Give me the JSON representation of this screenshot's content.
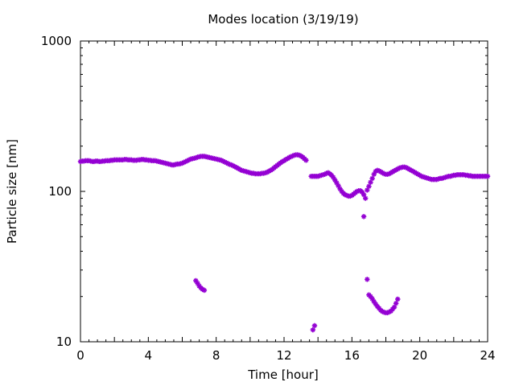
{
  "chart_data": {
    "type": "scatter",
    "title": "Modes location (3/19/19)",
    "xlabel": "Time [hour]",
    "ylabel": "Particle size [nm]",
    "xlim": [
      0,
      24
    ],
    "ylim": [
      10,
      1000
    ],
    "yscale": "log",
    "x_ticks": [
      "0",
      "4",
      "8",
      "12",
      "16",
      "20",
      "24"
    ],
    "y_ticks": [
      "10",
      "100",
      "1000"
    ],
    "grid": false,
    "marker_color": "#9400D3",
    "series": [
      {
        "points": [
          [
            0.0,
            158
          ],
          [
            0.1,
            159
          ],
          [
            0.2,
            159
          ],
          [
            0.3,
            160
          ],
          [
            0.4,
            160
          ],
          [
            0.5,
            160
          ],
          [
            0.6,
            159
          ],
          [
            0.7,
            158
          ],
          [
            0.8,
            158
          ],
          [
            0.9,
            159
          ],
          [
            1.0,
            159
          ],
          [
            1.1,
            158
          ],
          [
            1.2,
            158
          ],
          [
            1.3,
            159
          ],
          [
            1.4,
            159
          ],
          [
            1.5,
            160
          ],
          [
            1.6,
            160
          ],
          [
            1.7,
            160
          ],
          [
            1.8,
            161
          ],
          [
            1.9,
            161
          ],
          [
            2.0,
            162
          ],
          [
            2.1,
            162
          ],
          [
            2.2,
            162
          ],
          [
            2.3,
            162
          ],
          [
            2.4,
            162
          ],
          [
            2.5,
            162
          ],
          [
            2.6,
            163
          ],
          [
            2.7,
            163
          ],
          [
            2.8,
            162
          ],
          [
            2.9,
            162
          ],
          [
            3.0,
            162
          ],
          [
            3.1,
            161
          ],
          [
            3.2,
            161
          ],
          [
            3.3,
            161
          ],
          [
            3.4,
            162
          ],
          [
            3.5,
            162
          ],
          [
            3.6,
            163
          ],
          [
            3.7,
            163
          ],
          [
            3.8,
            162
          ],
          [
            3.9,
            162
          ],
          [
            4.0,
            161
          ],
          [
            4.1,
            161
          ],
          [
            4.2,
            160
          ],
          [
            4.3,
            160
          ],
          [
            4.4,
            160
          ],
          [
            4.5,
            159
          ],
          [
            4.6,
            158
          ],
          [
            4.7,
            157
          ],
          [
            4.8,
            156
          ],
          [
            4.9,
            155
          ],
          [
            5.0,
            154
          ],
          [
            5.1,
            153
          ],
          [
            5.2,
            152
          ],
          [
            5.3,
            151
          ],
          [
            5.4,
            150
          ],
          [
            5.5,
            150
          ],
          [
            5.6,
            151
          ],
          [
            5.7,
            152
          ],
          [
            5.8,
            152
          ],
          [
            5.9,
            153
          ],
          [
            6.0,
            154
          ],
          [
            6.1,
            156
          ],
          [
            6.2,
            158
          ],
          [
            6.3,
            160
          ],
          [
            6.4,
            162
          ],
          [
            6.5,
            164
          ],
          [
            6.6,
            165
          ],
          [
            6.7,
            166
          ],
          [
            6.8,
            167
          ],
          [
            6.9,
            169
          ],
          [
            7.0,
            170
          ],
          [
            7.1,
            171
          ],
          [
            7.2,
            171
          ],
          [
            7.3,
            171
          ],
          [
            7.4,
            170
          ],
          [
            7.5,
            169
          ],
          [
            7.6,
            168
          ],
          [
            7.7,
            167
          ],
          [
            7.8,
            166
          ],
          [
            7.9,
            165
          ],
          [
            8.0,
            164
          ],
          [
            8.1,
            163
          ],
          [
            8.2,
            162
          ],
          [
            8.3,
            161
          ],
          [
            8.4,
            159
          ],
          [
            8.5,
            157
          ],
          [
            8.6,
            155
          ],
          [
            8.7,
            153
          ],
          [
            8.8,
            151
          ],
          [
            8.9,
            150
          ],
          [
            9.0,
            148
          ],
          [
            9.1,
            146
          ],
          [
            9.2,
            144
          ],
          [
            9.3,
            142
          ],
          [
            9.4,
            140
          ],
          [
            9.5,
            138
          ],
          [
            9.6,
            137
          ],
          [
            9.7,
            136
          ],
          [
            9.8,
            135
          ],
          [
            9.9,
            134
          ],
          [
            10.0,
            133
          ],
          [
            10.1,
            132
          ],
          [
            10.2,
            132
          ],
          [
            10.3,
            131
          ],
          [
            10.4,
            131
          ],
          [
            10.5,
            131
          ],
          [
            10.6,
            131
          ],
          [
            10.7,
            132
          ],
          [
            10.8,
            132
          ],
          [
            10.9,
            133
          ],
          [
            11.0,
            134
          ],
          [
            11.1,
            136
          ],
          [
            11.2,
            138
          ],
          [
            11.3,
            140
          ],
          [
            11.4,
            143
          ],
          [
            11.5,
            146
          ],
          [
            11.6,
            149
          ],
          [
            11.7,
            152
          ],
          [
            11.8,
            155
          ],
          [
            11.9,
            158
          ],
          [
            12.0,
            160
          ],
          [
            12.1,
            163
          ],
          [
            12.2,
            165
          ],
          [
            12.3,
            168
          ],
          [
            12.4,
            170
          ],
          [
            12.5,
            172
          ],
          [
            12.6,
            174
          ],
          [
            12.7,
            175
          ],
          [
            12.8,
            175
          ],
          [
            12.9,
            174
          ],
          [
            13.0,
            172
          ],
          [
            13.1,
            169
          ],
          [
            13.2,
            165
          ],
          [
            13.3,
            161
          ],
          [
            13.6,
            126
          ],
          [
            13.7,
            126
          ],
          [
            13.8,
            126
          ],
          [
            13.9,
            126
          ],
          [
            14.0,
            126
          ],
          [
            14.1,
            127
          ],
          [
            14.2,
            128
          ],
          [
            14.3,
            129
          ],
          [
            14.4,
            130
          ],
          [
            14.5,
            132
          ],
          [
            14.6,
            133
          ],
          [
            14.7,
            131
          ],
          [
            14.8,
            128
          ],
          [
            14.9,
            124
          ],
          [
            15.0,
            119
          ],
          [
            15.1,
            114
          ],
          [
            15.2,
            109
          ],
          [
            15.3,
            104
          ],
          [
            15.4,
            100
          ],
          [
            15.5,
            97
          ],
          [
            15.6,
            95
          ],
          [
            15.7,
            94
          ],
          [
            15.8,
            93
          ],
          [
            15.9,
            93
          ],
          [
            16.0,
            94
          ],
          [
            16.1,
            96
          ],
          [
            16.2,
            98
          ],
          [
            16.3,
            100
          ],
          [
            16.4,
            101
          ],
          [
            16.5,
            101
          ],
          [
            16.6,
            99
          ],
          [
            16.7,
            95
          ],
          [
            16.8,
            90
          ],
          [
            16.9,
            102
          ],
          [
            17.0,
            108
          ],
          [
            17.1,
            115
          ],
          [
            17.2,
            122
          ],
          [
            17.3,
            130
          ],
          [
            17.4,
            136
          ],
          [
            17.5,
            138
          ],
          [
            17.6,
            137
          ],
          [
            17.7,
            135
          ],
          [
            17.8,
            133
          ],
          [
            17.9,
            131
          ],
          [
            18.0,
            130
          ],
          [
            18.1,
            130
          ],
          [
            18.2,
            131
          ],
          [
            18.3,
            133
          ],
          [
            18.4,
            135
          ],
          [
            18.5,
            137
          ],
          [
            18.6,
            139
          ],
          [
            18.7,
            141
          ],
          [
            18.8,
            143
          ],
          [
            18.9,
            144
          ],
          [
            19.0,
            145
          ],
          [
            19.1,
            145
          ],
          [
            19.2,
            144
          ],
          [
            19.3,
            142
          ],
          [
            19.4,
            140
          ],
          [
            19.5,
            138
          ],
          [
            19.6,
            136
          ],
          [
            19.7,
            134
          ],
          [
            19.8,
            132
          ],
          [
            19.9,
            130
          ],
          [
            20.0,
            128
          ],
          [
            20.1,
            126
          ],
          [
            20.2,
            125
          ],
          [
            20.3,
            124
          ],
          [
            20.4,
            123
          ],
          [
            20.5,
            122
          ],
          [
            20.6,
            121
          ],
          [
            20.7,
            120
          ],
          [
            20.8,
            120
          ],
          [
            20.9,
            120
          ],
          [
            21.0,
            120
          ],
          [
            21.1,
            121
          ],
          [
            21.2,
            122
          ],
          [
            21.3,
            122
          ],
          [
            21.4,
            123
          ],
          [
            21.5,
            124
          ],
          [
            21.6,
            125
          ],
          [
            21.7,
            126
          ],
          [
            21.8,
            126
          ],
          [
            21.9,
            127
          ],
          [
            22.0,
            128
          ],
          [
            22.1,
            128
          ],
          [
            22.2,
            129
          ],
          [
            22.3,
            129
          ],
          [
            22.4,
            129
          ],
          [
            22.5,
            129
          ],
          [
            22.6,
            129
          ],
          [
            22.7,
            128
          ],
          [
            22.8,
            128
          ],
          [
            22.9,
            127
          ],
          [
            23.0,
            127
          ],
          [
            23.1,
            126
          ],
          [
            23.2,
            126
          ],
          [
            23.3,
            126
          ],
          [
            23.4,
            126
          ],
          [
            23.5,
            126
          ],
          [
            23.6,
            126
          ],
          [
            23.7,
            126
          ],
          [
            23.8,
            126
          ],
          [
            23.9,
            126
          ],
          [
            24.0,
            126
          ],
          [
            6.8,
            25.5
          ],
          [
            6.9,
            24.5
          ],
          [
            7.0,
            23.5
          ],
          [
            7.1,
            22.8
          ],
          [
            7.2,
            22.3
          ],
          [
            7.3,
            22.0
          ],
          [
            13.7,
            12.0
          ],
          [
            13.8,
            12.8
          ],
          [
            16.7,
            68
          ],
          [
            16.9,
            26
          ],
          [
            17.0,
            20.5
          ],
          [
            17.1,
            20.0
          ],
          [
            17.2,
            19.3
          ],
          [
            17.3,
            18.5
          ],
          [
            17.4,
            17.8
          ],
          [
            17.5,
            17.2
          ],
          [
            17.6,
            16.7
          ],
          [
            17.7,
            16.2
          ],
          [
            17.8,
            15.9
          ],
          [
            17.9,
            15.7
          ],
          [
            18.0,
            15.6
          ],
          [
            18.1,
            15.6
          ],
          [
            18.2,
            15.8
          ],
          [
            18.3,
            16.0
          ],
          [
            18.4,
            16.5
          ],
          [
            18.5,
            17.0
          ],
          [
            18.6,
            18.0
          ],
          [
            18.7,
            19.2
          ]
        ]
      }
    ]
  }
}
